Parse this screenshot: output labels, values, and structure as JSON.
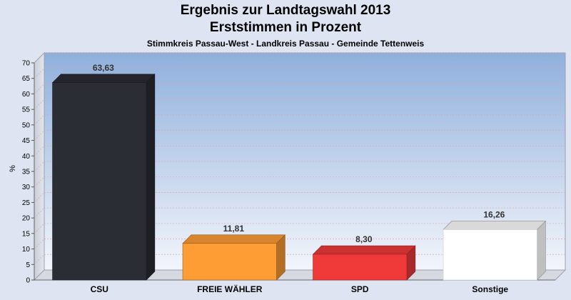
{
  "header": {
    "title": "Ergebnis zur Landtagswahl 2013",
    "subtitle": "Erststimmen in Prozent",
    "caption": "Stimmkreis Passau-West - Landkreis Passau - Gemeinde Tettenweis"
  },
  "chart_data": {
    "type": "bar",
    "categories": [
      "CSU",
      "FREIE WÄHLER",
      "SPD",
      "Sonstige"
    ],
    "values": [
      63.63,
      11.81,
      8.3,
      16.26
    ],
    "value_labels": [
      "63,63",
      "11,81",
      "8,30",
      "16,26"
    ],
    "colors": [
      "#2b2d35",
      "#ff9d35",
      "#f03a3a",
      "#ffffff"
    ],
    "ylabel": "%",
    "xlabel": "",
    "ylim": [
      0,
      70
    ],
    "yticks": [
      0,
      5,
      10,
      15,
      20,
      25,
      30,
      35,
      40,
      45,
      50,
      55,
      60,
      65,
      70
    ],
    "grid": true,
    "style": "3d-bars"
  }
}
